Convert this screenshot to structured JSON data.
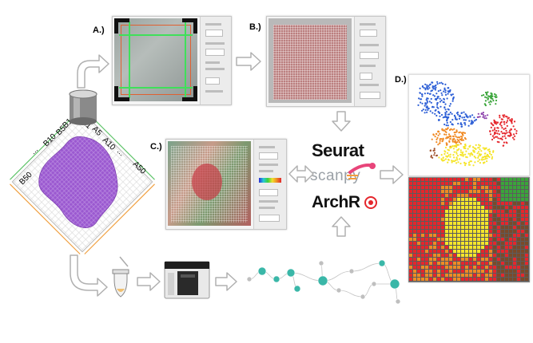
{
  "labels": {
    "a": "A.)",
    "b": "B.)",
    "c": "C.)",
    "d": "D.)"
  },
  "chip_labels": {
    "top": [
      "B1",
      "A1"
    ],
    "left_top": [
      "B10",
      "B5"
    ],
    "right_top": [
      "A5",
      "A10"
    ],
    "left_end": "B50",
    "right_end": "A50",
    "dots": "..."
  },
  "tools": {
    "seurat": "Seurat",
    "scanpy": "scanpy",
    "archr": "ArchR"
  },
  "colors": {
    "tissue_purple": "#9b59d0",
    "grid_orange": "#f0a040",
    "grid_green": "#5fc46a",
    "arrow_gray": "#b0b0b0",
    "node_teal": "#3ab7a8",
    "scanpy_orange": "#f39c3c",
    "scanpy_pink": "#e8457a",
    "scanpy_gray": "#9aa0a6"
  },
  "umap_cluster_colors": [
    "#2d5fd6",
    "#3aa53a",
    "#e5262c",
    "#f08a24",
    "#f5e52b",
    "#8e44ad",
    "#a0522d",
    "#777777"
  ],
  "icons": {
    "microscope": "microscope-lens-icon",
    "tube": "sample-tube-icon",
    "sequencer": "sequencer-icon",
    "pipeline": "workflow-graph-icon"
  }
}
